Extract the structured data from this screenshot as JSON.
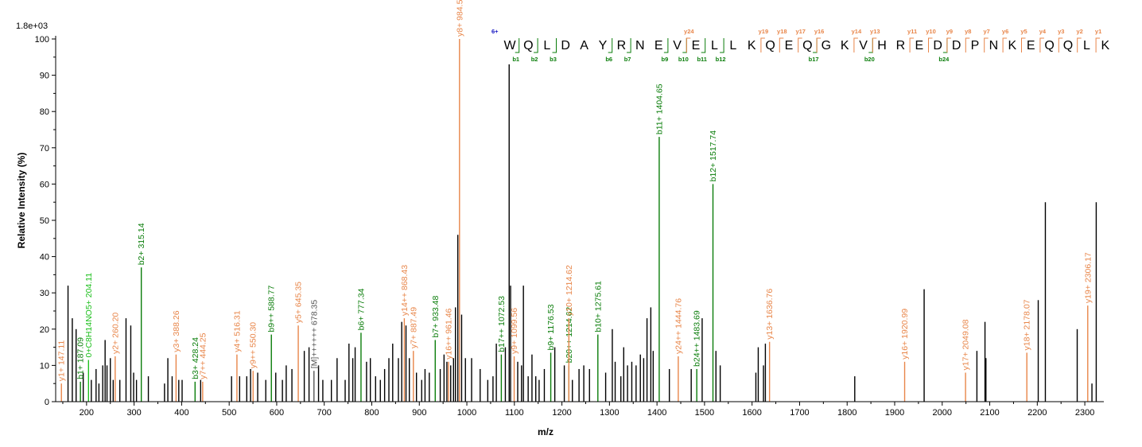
{
  "chart_data": {
    "type": "bar",
    "y_scale_label": "1.8e+03",
    "ylabel": "Relative   Intensity (%)",
    "xlabel": "m/z",
    "xlim": [
      135,
      2340
    ],
    "ylim": [
      0,
      100
    ],
    "x_ticks": [
      200,
      300,
      400,
      500,
      600,
      700,
      800,
      900,
      1000,
      1100,
      1200,
      1300,
      1400,
      1500,
      1600,
      1700,
      1800,
      1900,
      2000,
      2100,
      2200,
      2300
    ],
    "y_ticks": [
      0,
      10,
      20,
      30,
      40,
      50,
      60,
      70,
      80,
      90,
      100
    ],
    "colors": {
      "y_ion": "#e8864a",
      "b_ion": "#0a7d0a",
      "other_ion": "#20c020",
      "precursor": "#555555",
      "unassigned": "#000000",
      "charge": "#1010c0"
    },
    "annotated_peaks": [
      {
        "mz": 147.11,
        "intensity": 5,
        "ion": "y",
        "label": "y1+ 147.11"
      },
      {
        "mz": 187.09,
        "intensity": 5.5,
        "ion": "b",
        "label": "b1+ 187.09"
      },
      {
        "mz": 204.11,
        "intensity": 11.5,
        "ion": "other",
        "label": "0+C8H14NO5+ 204.11"
      },
      {
        "mz": 260.2,
        "intensity": 12.5,
        "ion": "y",
        "label": "y2+ 260.20"
      },
      {
        "mz": 315.14,
        "intensity": 37,
        "ion": "b",
        "label": "b2+ 315.14"
      },
      {
        "mz": 388.26,
        "intensity": 13,
        "ion": "y",
        "label": "y3+ 388.26"
      },
      {
        "mz": 428.24,
        "intensity": 5.5,
        "ion": "b",
        "label": "b3+ 428.24"
      },
      {
        "mz": 444.25,
        "intensity": 5.5,
        "ion": "y",
        "label": "y7++ 444.25"
      },
      {
        "mz": 516.31,
        "intensity": 13,
        "ion": "y",
        "label": "y4+ 516.31"
      },
      {
        "mz": 550.3,
        "intensity": 8.5,
        "ion": "y",
        "label": "y9++ 550.30"
      },
      {
        "mz": 588.77,
        "intensity": 18.5,
        "ion": "b",
        "label": "b9++ 588.77"
      },
      {
        "mz": 645.35,
        "intensity": 21,
        "ion": "y",
        "label": "y5+ 645.35"
      },
      {
        "mz": 678.35,
        "intensity": 8.5,
        "ion": "precursor",
        "label": "[M]++++++ 678.35"
      },
      {
        "mz": 777.34,
        "intensity": 19,
        "ion": "b",
        "label": "b6+ 777.34"
      },
      {
        "mz": 868.43,
        "intensity": 23,
        "ion": "y",
        "label": "y14++ 868.43"
      },
      {
        "mz": 887.49,
        "intensity": 14,
        "ion": "y",
        "label": "y7+ 887.49"
      },
      {
        "mz": 933.48,
        "intensity": 17,
        "ion": "b",
        "label": "b7+ 933.48"
      },
      {
        "mz": 961.46,
        "intensity": 11,
        "ion": "y",
        "label": "y16++ 961.46"
      },
      {
        "mz": 984.54,
        "intensity": 100,
        "ion": "y",
        "label": "y8+ 984.54"
      },
      {
        "mz": 1072.53,
        "intensity": 13,
        "ion": "b",
        "label": "b17++ 1072.53"
      },
      {
        "mz": 1099.56,
        "intensity": 12.5,
        "ion": "y",
        "label": "y9+ 1099.56"
      },
      {
        "mz": 1176.53,
        "intensity": 13.5,
        "ion": "b",
        "label": "b9+ 1176.53"
      },
      {
        "mz": 1214.62,
        "intensity": 10,
        "ion": "b",
        "label": "b20++ 1214.62"
      },
      {
        "mz": 1214.62,
        "intensity": 23,
        "ion": "y",
        "label": "y10+ 1214.62"
      },
      {
        "mz": 1275.61,
        "intensity": 18.5,
        "ion": "b",
        "label": "b10+ 1275.61"
      },
      {
        "mz": 1404.65,
        "intensity": 73,
        "ion": "b",
        "label": "b11+ 1404.65"
      },
      {
        "mz": 1444.76,
        "intensity": 12.5,
        "ion": "y",
        "label": "y24++ 1444.76"
      },
      {
        "mz": 1483.69,
        "intensity": 9,
        "ion": "b",
        "label": "b24++ 1483.69"
      },
      {
        "mz": 1517.74,
        "intensity": 60,
        "ion": "b",
        "label": "b12+ 1517.74"
      },
      {
        "mz": 1636.76,
        "intensity": 16.5,
        "ion": "y",
        "label": "y13+ 1636.76"
      },
      {
        "mz": 1920.99,
        "intensity": 11,
        "ion": "y",
        "label": "y16+ 1920.99"
      },
      {
        "mz": 2049.08,
        "intensity": 8,
        "ion": "y",
        "label": "y17+ 2049.08"
      },
      {
        "mz": 2178.07,
        "intensity": 13.5,
        "ion": "y",
        "label": "y18+ 2178.07"
      },
      {
        "mz": 2306.17,
        "intensity": 26.5,
        "ion": "y",
        "label": "y19+ 2306.17"
      }
    ],
    "unassigned_peaks": [
      [
        161,
        32
      ],
      [
        170,
        23
      ],
      [
        178,
        20
      ],
      [
        193,
        8
      ],
      [
        210,
        6
      ],
      [
        220,
        9
      ],
      [
        226,
        5
      ],
      [
        234,
        10
      ],
      [
        239,
        17
      ],
      [
        243,
        10
      ],
      [
        250,
        12
      ],
      [
        256,
        6
      ],
      [
        270,
        6
      ],
      [
        283,
        23
      ],
      [
        293,
        21
      ],
      [
        299,
        8
      ],
      [
        305,
        6
      ],
      [
        330,
        7
      ],
      [
        364,
        5
      ],
      [
        371,
        12
      ],
      [
        380,
        7
      ],
      [
        394,
        6
      ],
      [
        401,
        6
      ],
      [
        440,
        6
      ],
      [
        505,
        7
      ],
      [
        522,
        7
      ],
      [
        537,
        7
      ],
      [
        545,
        9
      ],
      [
        560,
        8
      ],
      [
        577,
        6
      ],
      [
        598,
        8
      ],
      [
        612,
        6
      ],
      [
        620,
        10
      ],
      [
        632,
        9
      ],
      [
        658,
        14
      ],
      [
        668,
        15
      ],
      [
        688,
        10
      ],
      [
        697,
        6
      ],
      [
        715,
        6
      ],
      [
        727,
        12
      ],
      [
        744,
        6
      ],
      [
        752,
        16
      ],
      [
        760,
        12
      ],
      [
        765,
        15
      ],
      [
        789,
        11
      ],
      [
        797,
        12
      ],
      [
        808,
        7
      ],
      [
        818,
        6
      ],
      [
        827,
        9
      ],
      [
        836,
        12
      ],
      [
        844,
        16
      ],
      [
        856,
        12
      ],
      [
        863,
        22
      ],
      [
        872,
        21
      ],
      [
        879,
        12
      ],
      [
        894,
        8
      ],
      [
        905,
        6
      ],
      [
        912,
        9
      ],
      [
        921,
        8
      ],
      [
        944,
        9
      ],
      [
        952,
        13
      ],
      [
        958,
        11
      ],
      [
        966,
        10
      ],
      [
        972,
        12
      ],
      [
        976,
        26
      ],
      [
        981,
        46
      ],
      [
        989,
        24
      ],
      [
        997,
        12
      ],
      [
        1010,
        12
      ],
      [
        1028,
        9
      ],
      [
        1044,
        6
      ],
      [
        1055,
        7
      ],
      [
        1062,
        16
      ],
      [
        1081,
        15
      ],
      [
        1089,
        93
      ],
      [
        1092,
        32
      ],
      [
        1107,
        11
      ],
      [
        1115,
        10
      ],
      [
        1119,
        32
      ],
      [
        1129,
        7
      ],
      [
        1137,
        13
      ],
      [
        1145,
        7
      ],
      [
        1152,
        6
      ],
      [
        1163,
        9
      ],
      [
        1185,
        15
      ],
      [
        1205,
        10
      ],
      [
        1222,
        6
      ],
      [
        1236,
        9
      ],
      [
        1246,
        10
      ],
      [
        1258,
        9
      ],
      [
        1292,
        8
      ],
      [
        1306,
        20
      ],
      [
        1312,
        11
      ],
      [
        1324,
        7
      ],
      [
        1330,
        15
      ],
      [
        1338,
        10
      ],
      [
        1347,
        11
      ],
      [
        1356,
        10
      ],
      [
        1365,
        13
      ],
      [
        1372,
        12
      ],
      [
        1379,
        23
      ],
      [
        1387,
        26
      ],
      [
        1392,
        14
      ],
      [
        1426,
        9
      ],
      [
        1472,
        9
      ],
      [
        1495,
        23
      ],
      [
        1524,
        14
      ],
      [
        1533,
        10
      ],
      [
        1608,
        8
      ],
      [
        1613,
        15
      ],
      [
        1624,
        10
      ],
      [
        1628,
        16
      ],
      [
        1816,
        7
      ],
      [
        1962,
        31
      ],
      [
        2073,
        14
      ],
      [
        2090,
        22
      ],
      [
        2092,
        12
      ],
      [
        2202,
        28
      ],
      [
        2217,
        55
      ],
      [
        2284,
        20
      ],
      [
        2324,
        55
      ],
      [
        2315,
        5
      ]
    ],
    "sequence": {
      "charge_label": "6+",
      "residues": [
        "W",
        "Q",
        "L",
        "D",
        "A",
        "Y",
        "R",
        "N",
        "E",
        "V",
        "E",
        "L",
        "L",
        "K",
        "Q",
        "E",
        "Q",
        "G",
        "K",
        "V",
        "H",
        "R",
        "E",
        "D",
        "D",
        "P",
        "N",
        "K",
        "E",
        "Q",
        "Q",
        "L",
        "K"
      ],
      "b_labels": [
        {
          "after": 1,
          "label": "b1"
        },
        {
          "after": 2,
          "label": "b2"
        },
        {
          "after": 3,
          "label": "b3"
        },
        {
          "after": 6,
          "label": "b6"
        },
        {
          "after": 7,
          "label": "b7"
        },
        {
          "after": 9,
          "label": "b9"
        },
        {
          "after": 10,
          "label": "b10"
        },
        {
          "after": 11,
          "label": "b11"
        },
        {
          "after": 12,
          "label": "b12"
        },
        {
          "after": 17,
          "label": "b17"
        },
        {
          "after": 20,
          "label": "b20"
        },
        {
          "after": 24,
          "label": "b24"
        }
      ],
      "y_labels": [
        {
          "before": 10,
          "label": "y24"
        },
        {
          "before": 14,
          "label": "y19"
        },
        {
          "before": 15,
          "label": "y18"
        },
        {
          "before": 16,
          "label": "y17"
        },
        {
          "before": 17,
          "label": "y16"
        },
        {
          "before": 19,
          "label": "y14"
        },
        {
          "before": 20,
          "label": "y13"
        },
        {
          "before": 22,
          "label": "y11"
        },
        {
          "before": 23,
          "label": "y10"
        },
        {
          "before": 24,
          "label": "y9"
        },
        {
          "before": 25,
          "label": "y8"
        },
        {
          "before": 26,
          "label": "y7"
        },
        {
          "before": 27,
          "label": "y6"
        },
        {
          "before": 28,
          "label": "y5"
        },
        {
          "before": 29,
          "label": "y4"
        },
        {
          "before": 30,
          "label": "y3"
        },
        {
          "before": 31,
          "label": "y2"
        },
        {
          "before": 32,
          "label": "y1"
        }
      ]
    }
  }
}
